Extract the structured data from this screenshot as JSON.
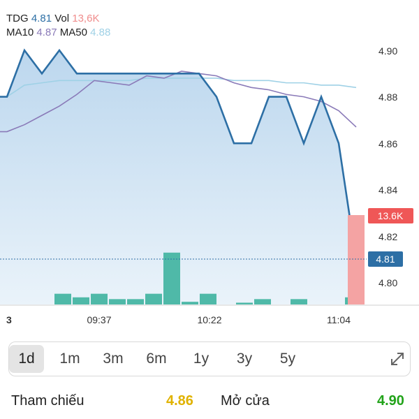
{
  "colors": {
    "price_line": "#2d6fa5",
    "area_fill": "#c2dbef",
    "ma10": "#8a7ab8",
    "ma50": "#9fd1e6",
    "volume": "#4fb9a8",
    "volume_highlight": "#f4a3a3",
    "vol_badge": "#ef5757",
    "price_badge": "#2d6fa5",
    "ref_yellow": "#e0b200",
    "open_green": "#22a31a"
  },
  "header": {
    "ticker": "TDG",
    "price": "4.81",
    "vol_label": "Vol",
    "vol_value": "13,6K",
    "ma10_label": "MA10",
    "ma10_value": "4.87",
    "ma50_label": "MA50",
    "ma50_value": "4.88"
  },
  "chart_data": {
    "type": "line",
    "y_ticks": [
      "4.90",
      "4.88",
      "4.86",
      "4.84",
      "4.82",
      "4.80"
    ],
    "ylim": [
      4.79,
      4.91
    ],
    "x_tick_labels": [
      "3",
      "09:37",
      "10:22",
      "11:04"
    ],
    "current_price_label": "4.81",
    "volume_badge": "13.6K",
    "series": [
      {
        "values": [
          4.88,
          4.9,
          4.89,
          4.9,
          4.89,
          4.89,
          4.89,
          4.89,
          4.89,
          4.89,
          4.89,
          4.89,
          4.88,
          4.86,
          4.86,
          4.88,
          4.88,
          4.86,
          4.88,
          4.86,
          4.81
        ]
      },
      {
        "name": "MA10",
        "values": [
          4.865,
          4.868,
          4.872,
          4.876,
          4.881,
          4.887,
          4.886,
          4.885,
          4.889,
          4.888,
          4.891,
          4.89,
          4.889,
          4.886,
          4.884,
          4.883,
          4.881,
          4.88,
          4.878,
          4.874,
          4.867
        ]
      },
      {
        "name": "MA50",
        "values": [
          4.88,
          4.885,
          4.886,
          4.887,
          4.887,
          4.887,
          4.887,
          4.887,
          4.888,
          4.888,
          4.888,
          4.888,
          4.888,
          4.887,
          4.887,
          4.887,
          4.886,
          4.886,
          4.885,
          4.885,
          4.884
        ]
      }
    ],
    "volume": [
      0,
      0.12,
      0.08,
      0.12,
      0.06,
      0.06,
      0.12,
      0.58,
      0.03,
      0.12,
      0.0,
      0.02,
      0.06,
      0.0,
      0.06,
      0.0,
      0.0,
      0.08,
      0.0,
      1.0
    ]
  },
  "tabs": [
    "1d",
    "1m",
    "3m",
    "6m",
    "1y",
    "3y",
    "5y"
  ],
  "active_tab": "1d",
  "stats": {
    "ref_label": "Tham chiếu",
    "ref_value": "4.86",
    "open_label": "Mở cửa",
    "open_value": "4.90"
  }
}
